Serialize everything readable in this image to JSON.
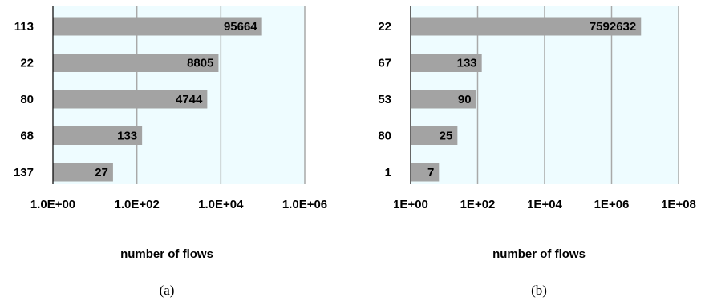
{
  "chart_data": [
    {
      "type": "bar",
      "orientation": "horizontal",
      "x_scale": "log",
      "categories": [
        "113",
        "22",
        "80",
        "68",
        "137"
      ],
      "values": [
        95664,
        8805,
        4744,
        133,
        27
      ],
      "data_labels": [
        "95664",
        "8805",
        "4744",
        "133",
        "27"
      ],
      "xlim": [
        1,
        1000000
      ],
      "xticks": [
        1,
        100,
        10000,
        1000000
      ],
      "xtick_labels": [
        "1.0E+00",
        "1.0E+02",
        "1.0E+04",
        "1.0E+06"
      ],
      "xlabel": "number of flows",
      "ylabel": "",
      "title": "",
      "caption": "(a)",
      "grid": true,
      "plot_background": "#eefcff",
      "bar_color": "#a3a3a3"
    },
    {
      "type": "bar",
      "orientation": "horizontal",
      "x_scale": "log",
      "categories": [
        "22",
        "67",
        "53",
        "80",
        "1"
      ],
      "values": [
        7592632,
        133,
        90,
        25,
        7
      ],
      "data_labels": [
        "7592632",
        "133",
        "90",
        "25",
        "7"
      ],
      "xlim": [
        1,
        100000000
      ],
      "xticks": [
        1,
        100,
        10000,
        1000000,
        100000000
      ],
      "xtick_labels": [
        "1E+00",
        "1E+02",
        "1E+04",
        "1E+06",
        "1E+08"
      ],
      "xlabel": "number of flows",
      "ylabel": "",
      "title": "",
      "caption": "(b)",
      "grid": true,
      "plot_background": "#eefcff",
      "bar_color": "#a3a3a3"
    }
  ]
}
